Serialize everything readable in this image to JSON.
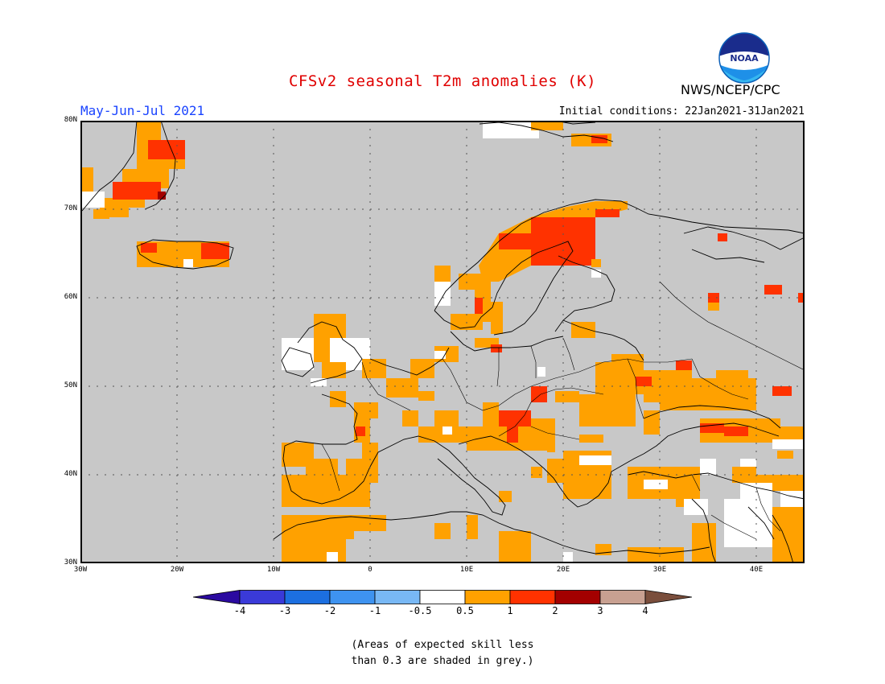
{
  "header": {
    "title": "CFSv2 seasonal T2m anomalies (K)",
    "season": "May-Jun-Jul 2021",
    "initial_conditions": "Initial conditions: 22Jan2021-31Jan2021",
    "agency": "NWS/NCEP/CPC",
    "logo_text": "NOAA"
  },
  "map": {
    "lat_labels": [
      "80N",
      "70N",
      "60N",
      "50N",
      "40N",
      "30N"
    ],
    "lon_labels": [
      "30W",
      "20W",
      "10W",
      "0",
      "10E",
      "20E",
      "30E",
      "40E"
    ],
    "background_color": "#c8c8c8"
  },
  "legend": {
    "colors": [
      "#2b0aa0",
      "#3a3ad8",
      "#1c6fe0",
      "#3e93f0",
      "#78b8f5",
      "#ffffff",
      "#ffa100",
      "#ff3200",
      "#a30000",
      "#c8a091",
      "#7a4e3c"
    ],
    "labels": [
      "-4",
      "-3",
      "-2",
      "-1",
      "-0.5",
      "0.5",
      "1",
      "2",
      "3",
      "4"
    ]
  },
  "note": {
    "line1": "(Areas of expected skill less",
    "line2": "than 0.3 are shaded in grey.)"
  }
}
